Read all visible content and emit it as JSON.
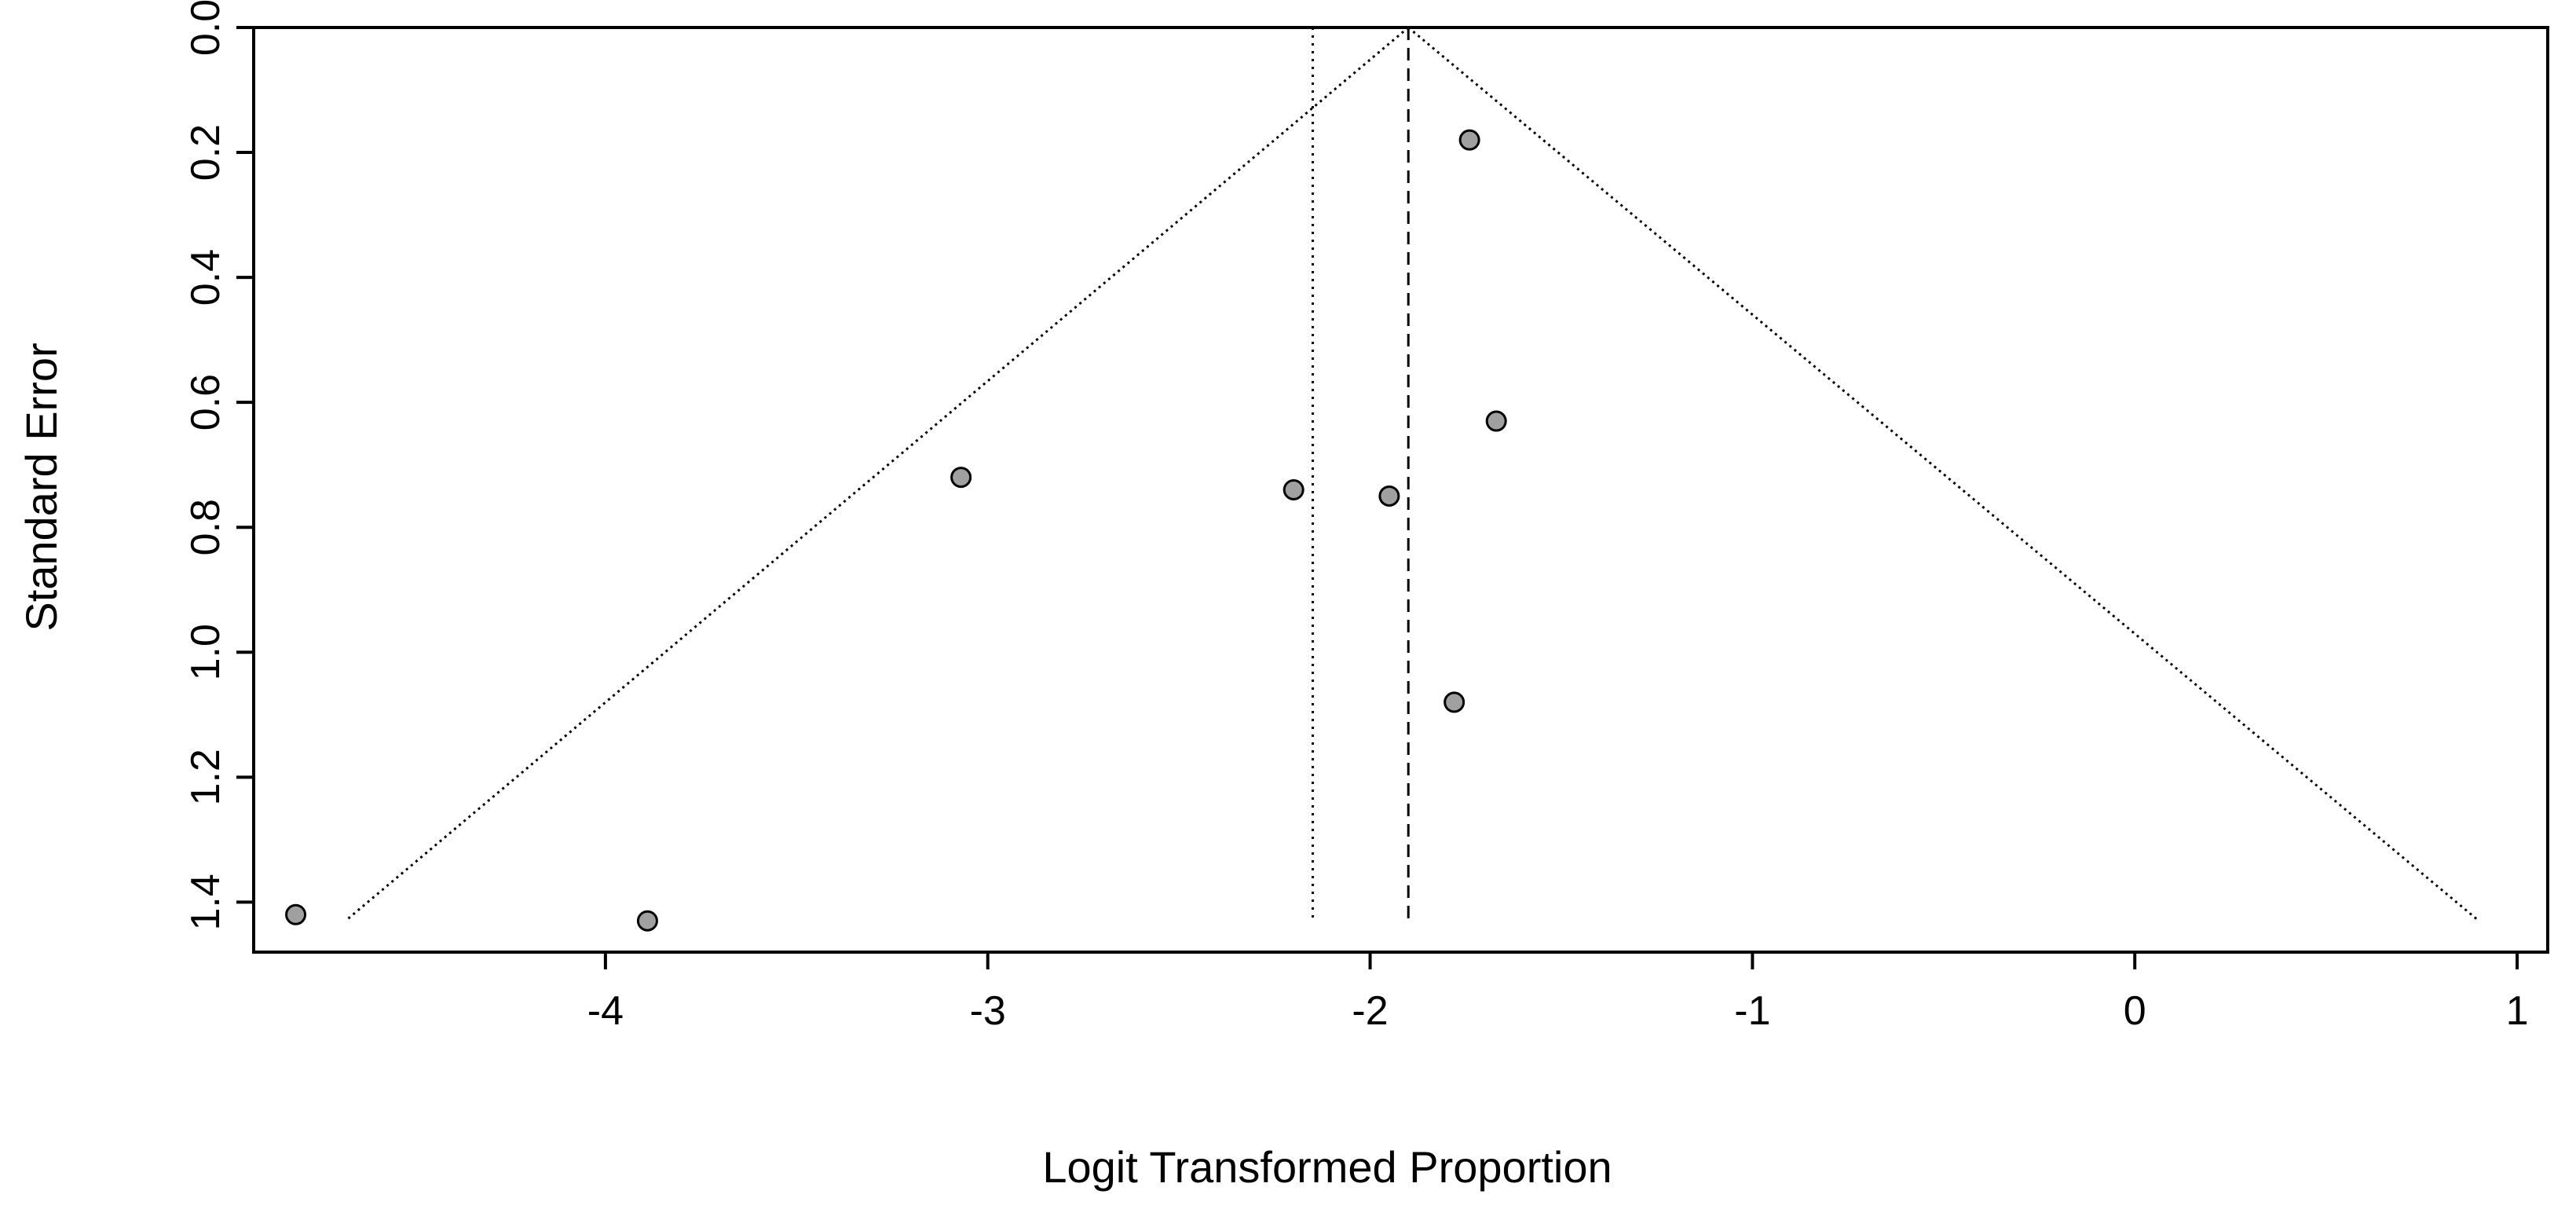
{
  "chart_data": {
    "type": "scatter",
    "title": "",
    "xlabel": "Logit Transformed Proportion",
    "ylabel": "Standard Error",
    "xlim": [
      -4.92,
      1.08
    ],
    "ylim": [
      0,
      1.48
    ],
    "y_axis_reversed": true,
    "grid": false,
    "x_ticks": [
      -4,
      -3,
      -2,
      -1,
      0,
      1
    ],
    "x_tick_labels": [
      "-4",
      "-3",
      "-2",
      "-1",
      "0",
      "1"
    ],
    "y_ticks": [
      0.0,
      0.2,
      0.4,
      0.6,
      0.8,
      1.0,
      1.2,
      1.4
    ],
    "y_tick_labels": [
      "0.0",
      "0.2",
      "0.4",
      "0.6",
      "0.8",
      "1.0",
      "1.2",
      "1.4"
    ],
    "points": [
      {
        "x": -4.81,
        "y": 1.42
      },
      {
        "x": -3.89,
        "y": 1.43
      },
      {
        "x": -3.07,
        "y": 0.72
      },
      {
        "x": -2.2,
        "y": 0.74
      },
      {
        "x": -1.95,
        "y": 0.75
      },
      {
        "x": -1.78,
        "y": 1.08
      },
      {
        "x": -1.74,
        "y": 0.18
      },
      {
        "x": -1.67,
        "y": 0.63
      }
    ],
    "funnel": {
      "apex": {
        "x": -1.9,
        "y": 0.0
      },
      "left_base": {
        "x": -4.68,
        "y": 1.43
      },
      "right_base": {
        "x": 0.9,
        "y": 1.43
      }
    },
    "reference_lines": [
      {
        "x": -2.15,
        "style": "dotted"
      },
      {
        "x": -1.9,
        "style": "dashed"
      }
    ],
    "point_fill": "#a0a0a0",
    "point_stroke": "#000000",
    "line_color": "#000000"
  }
}
